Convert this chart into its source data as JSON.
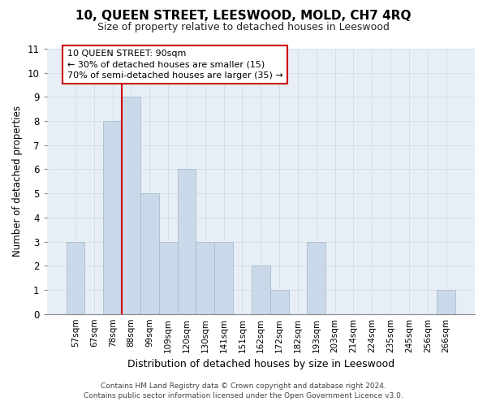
{
  "title": "10, QUEEN STREET, LEESWOOD, MOLD, CH7 4RQ",
  "subtitle": "Size of property relative to detached houses in Leeswood",
  "xlabel": "Distribution of detached houses by size in Leeswood",
  "ylabel": "Number of detached properties",
  "categories": [
    "57sqm",
    "67sqm",
    "78sqm",
    "88sqm",
    "99sqm",
    "109sqm",
    "120sqm",
    "130sqm",
    "141sqm",
    "151sqm",
    "162sqm",
    "172sqm",
    "182sqm",
    "193sqm",
    "203sqm",
    "214sqm",
    "224sqm",
    "235sqm",
    "245sqm",
    "256sqm",
    "266sqm"
  ],
  "values": [
    3,
    0,
    8,
    9,
    5,
    3,
    6,
    3,
    3,
    0,
    2,
    1,
    0,
    3,
    0,
    0,
    0,
    0,
    0,
    0,
    1
  ],
  "bar_color": "#c9d9ea",
  "bar_edgecolor": "#a8becd",
  "grid_color": "#d0d8e0",
  "vline_color": "#cc0000",
  "vline_x_index": 3,
  "annotation_text_line1": "10 QUEEN STREET: 90sqm",
  "annotation_text_line2": "← 30% of detached houses are smaller (15)",
  "annotation_text_line3": "70% of semi-detached houses are larger (35) →",
  "ylim": [
    0,
    11
  ],
  "yticks": [
    0,
    1,
    2,
    3,
    4,
    5,
    6,
    7,
    8,
    9,
    10,
    11
  ],
  "footer_line1": "Contains HM Land Registry data © Crown copyright and database right 2024.",
  "footer_line2": "Contains public sector information licensed under the Open Government Licence v3.0.",
  "bg_color": "#ffffff",
  "plot_bg_color": "#e8eef5"
}
